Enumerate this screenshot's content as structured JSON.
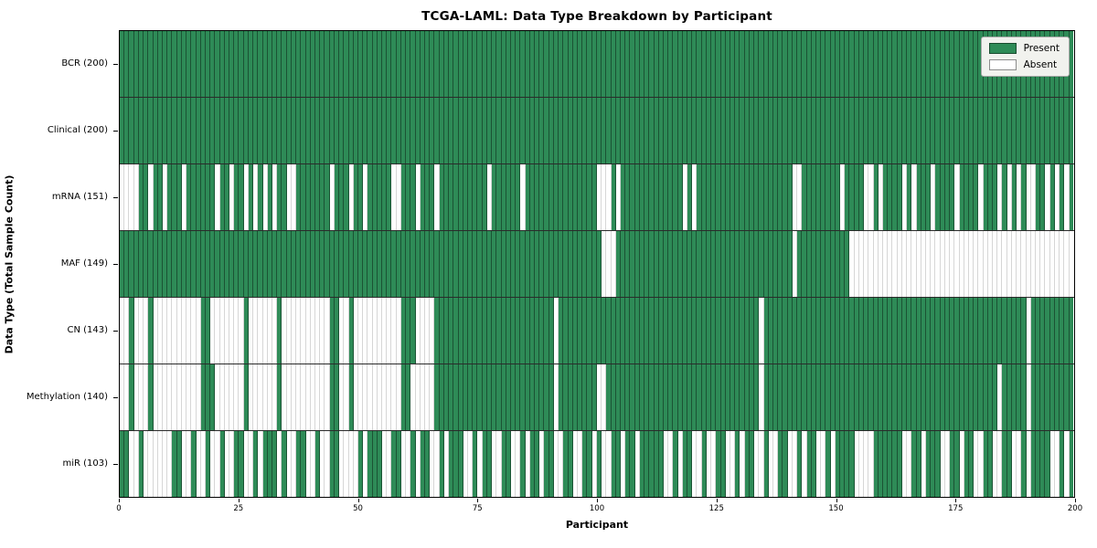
{
  "chart_data": {
    "type": "heatmap",
    "title": "TCGA-LAML: Data Type Breakdown by Participant",
    "xlabel": "Participant",
    "ylabel": "Data Type (Total Sample Count)",
    "n_participants": 200,
    "x_ticks": [
      0,
      25,
      50,
      75,
      100,
      125,
      150,
      175,
      200
    ],
    "grid": "cell-borders",
    "legend_position": "upper-right",
    "colors": {
      "present": "#2e8b57",
      "absent": "#ffffff"
    },
    "legend": [
      {
        "label": "Present",
        "color": "#2e8b57"
      },
      {
        "label": "Absent",
        "color": "#ffffff"
      }
    ],
    "rows": [
      {
        "label": "BCR (200)",
        "present_count": 200,
        "mode": "absent",
        "runs": []
      },
      {
        "label": "Clinical (200)",
        "present_count": 200,
        "mode": "absent",
        "runs": []
      },
      {
        "label": "mRNA (151)",
        "present_count": 151,
        "mode": "absent",
        "runs": [
          [
            0,
            3
          ],
          [
            6,
            6
          ],
          [
            9,
            9
          ],
          [
            13,
            13
          ],
          [
            20,
            20
          ],
          [
            23,
            23
          ],
          [
            26,
            26
          ],
          [
            28,
            28
          ],
          [
            30,
            30
          ],
          [
            32,
            32
          ],
          [
            35,
            36
          ],
          [
            44,
            44
          ],
          [
            48,
            48
          ],
          [
            51,
            51
          ],
          [
            57,
            58
          ],
          [
            62,
            62
          ],
          [
            66,
            66
          ],
          [
            77,
            77
          ],
          [
            84,
            84
          ],
          [
            100,
            102
          ],
          [
            104,
            104
          ],
          [
            118,
            118
          ],
          [
            120,
            120
          ],
          [
            141,
            142
          ],
          [
            151,
            151
          ],
          [
            156,
            157
          ],
          [
            159,
            159
          ],
          [
            164,
            164
          ],
          [
            166,
            166
          ],
          [
            170,
            170
          ],
          [
            175,
            175
          ],
          [
            180,
            180
          ],
          [
            184,
            184
          ],
          [
            186,
            186
          ],
          [
            188,
            188
          ],
          [
            190,
            191
          ],
          [
            194,
            194
          ],
          [
            196,
            196
          ],
          [
            198,
            198
          ]
        ]
      },
      {
        "label": "MAF (149)",
        "present_count": 149,
        "mode": "absent",
        "runs": [
          [
            101,
            103
          ],
          [
            141,
            141
          ],
          [
            153,
            199
          ]
        ]
      },
      {
        "label": "CN (143)",
        "present_count": 143,
        "mode": "absent",
        "runs": [
          [
            0,
            1
          ],
          [
            3,
            5
          ],
          [
            7,
            16
          ],
          [
            19,
            25
          ],
          [
            27,
            32
          ],
          [
            34,
            43
          ],
          [
            46,
            47
          ],
          [
            49,
            58
          ],
          [
            62,
            65
          ],
          [
            91,
            91
          ],
          [
            134,
            134
          ],
          [
            190,
            190
          ]
        ]
      },
      {
        "label": "Methylation (140)",
        "present_count": 140,
        "mode": "absent",
        "runs": [
          [
            0,
            1
          ],
          [
            3,
            5
          ],
          [
            7,
            16
          ],
          [
            20,
            25
          ],
          [
            27,
            32
          ],
          [
            34,
            43
          ],
          [
            46,
            47
          ],
          [
            49,
            58
          ],
          [
            61,
            65
          ],
          [
            91,
            91
          ],
          [
            100,
            101
          ],
          [
            134,
            134
          ],
          [
            184,
            184
          ],
          [
            190,
            190
          ]
        ]
      },
      {
        "label": "miR (103)",
        "present_count": 103,
        "mode": "present",
        "runs": [
          [
            0,
            1
          ],
          [
            4,
            4
          ],
          [
            11,
            12
          ],
          [
            15,
            15
          ],
          [
            18,
            18
          ],
          [
            21,
            21
          ],
          [
            24,
            25
          ],
          [
            28,
            28
          ],
          [
            30,
            32
          ],
          [
            34,
            34
          ],
          [
            37,
            38
          ],
          [
            41,
            41
          ],
          [
            44,
            45
          ],
          [
            50,
            50
          ],
          [
            52,
            54
          ],
          [
            57,
            58
          ],
          [
            61,
            61
          ],
          [
            63,
            64
          ],
          [
            67,
            67
          ],
          [
            69,
            71
          ],
          [
            74,
            74
          ],
          [
            76,
            77
          ],
          [
            80,
            81
          ],
          [
            84,
            84
          ],
          [
            86,
            87
          ],
          [
            89,
            90
          ],
          [
            93,
            94
          ],
          [
            97,
            98
          ],
          [
            100,
            100
          ],
          [
            103,
            104
          ],
          [
            106,
            107
          ],
          [
            109,
            113
          ],
          [
            116,
            116
          ],
          [
            118,
            119
          ],
          [
            122,
            122
          ],
          [
            125,
            126
          ],
          [
            129,
            129
          ],
          [
            131,
            132
          ],
          [
            135,
            135
          ],
          [
            138,
            139
          ],
          [
            142,
            142
          ],
          [
            144,
            145
          ],
          [
            148,
            148
          ],
          [
            150,
            153
          ],
          [
            158,
            163
          ],
          [
            166,
            167
          ],
          [
            169,
            171
          ],
          [
            174,
            175
          ],
          [
            177,
            178
          ],
          [
            181,
            182
          ],
          [
            185,
            186
          ],
          [
            189,
            189
          ],
          [
            191,
            194
          ],
          [
            197,
            197
          ],
          [
            199,
            199
          ]
        ]
      }
    ]
  }
}
